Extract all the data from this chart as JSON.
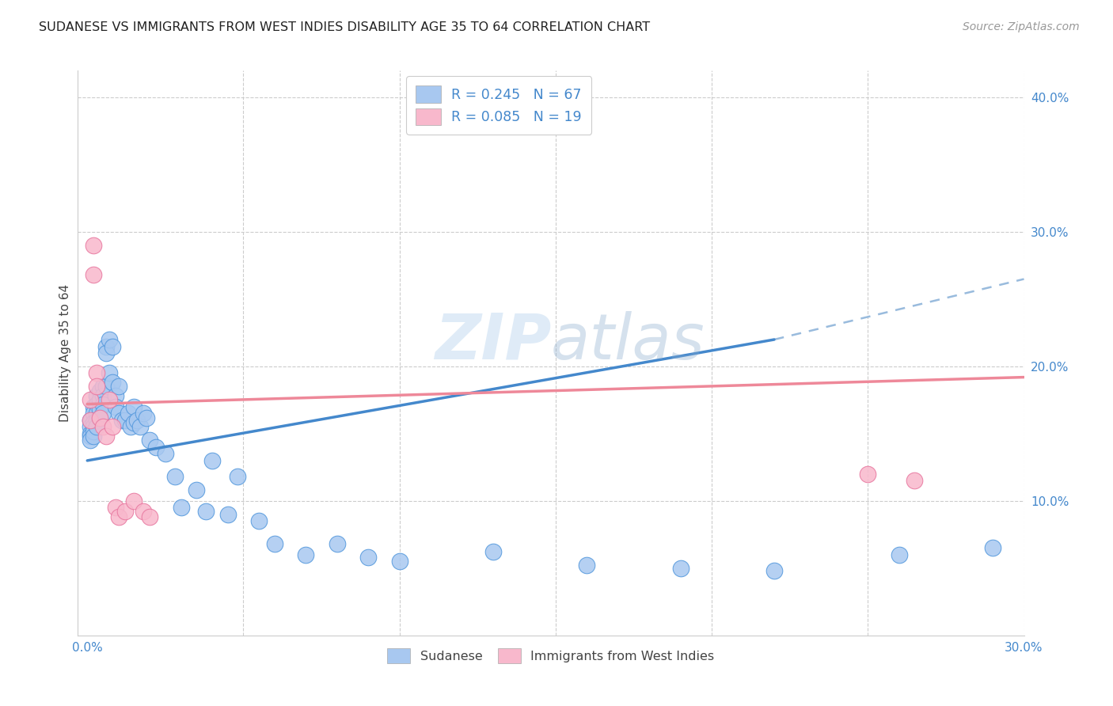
{
  "title": "SUDANESE VS IMMIGRANTS FROM WEST INDIES DISABILITY AGE 35 TO 64 CORRELATION CHART",
  "source": "Source: ZipAtlas.com",
  "ylabel": "Disability Age 35 to 64",
  "xlim": [
    0.0,
    0.3
  ],
  "ylim": [
    0.0,
    0.42
  ],
  "series1_color": "#a8c8f0",
  "series1_edge": "#5599dd",
  "series2_color": "#f8b8cc",
  "series2_edge": "#e878a0",
  "trend1_color": "#4488cc",
  "trend2_color": "#ee8899",
  "trend1_dash_color": "#99bbdd",
  "legend1_label": "R = 0.245   N = 67",
  "legend2_label": "R = 0.085   N = 19",
  "legend1_color": "#a8c8f0",
  "legend2_color": "#f8b8cc",
  "watermark": "ZIPatlas",
  "sudanese_x": [
    0.001,
    0.001,
    0.001,
    0.001,
    0.001,
    0.002,
    0.002,
    0.002,
    0.002,
    0.002,
    0.002,
    0.003,
    0.003,
    0.003,
    0.003,
    0.003,
    0.004,
    0.004,
    0.004,
    0.004,
    0.005,
    0.005,
    0.005,
    0.005,
    0.006,
    0.006,
    0.006,
    0.007,
    0.007,
    0.008,
    0.008,
    0.009,
    0.009,
    0.01,
    0.01,
    0.011,
    0.012,
    0.013,
    0.014,
    0.015,
    0.015,
    0.016,
    0.017,
    0.018,
    0.019,
    0.02,
    0.022,
    0.025,
    0.028,
    0.03,
    0.035,
    0.038,
    0.04,
    0.045,
    0.048,
    0.055,
    0.06,
    0.07,
    0.08,
    0.09,
    0.1,
    0.13,
    0.16,
    0.19,
    0.22,
    0.26,
    0.29
  ],
  "sudanese_y": [
    0.16,
    0.155,
    0.15,
    0.148,
    0.145,
    0.17,
    0.165,
    0.158,
    0.155,
    0.152,
    0.148,
    0.178,
    0.172,
    0.165,
    0.16,
    0.155,
    0.182,
    0.175,
    0.168,
    0.162,
    0.185,
    0.178,
    0.172,
    0.165,
    0.215,
    0.21,
    0.185,
    0.22,
    0.195,
    0.215,
    0.188,
    0.178,
    0.17,
    0.185,
    0.165,
    0.16,
    0.16,
    0.165,
    0.155,
    0.17,
    0.158,
    0.16,
    0.155,
    0.165,
    0.162,
    0.145,
    0.14,
    0.135,
    0.118,
    0.095,
    0.108,
    0.092,
    0.13,
    0.09,
    0.118,
    0.085,
    0.068,
    0.06,
    0.068,
    0.058,
    0.055,
    0.062,
    0.052,
    0.05,
    0.048,
    0.06,
    0.065
  ],
  "westindies_x": [
    0.001,
    0.001,
    0.002,
    0.002,
    0.003,
    0.003,
    0.004,
    0.005,
    0.006,
    0.007,
    0.008,
    0.009,
    0.01,
    0.012,
    0.015,
    0.018,
    0.02,
    0.25,
    0.265
  ],
  "westindies_y": [
    0.175,
    0.16,
    0.29,
    0.268,
    0.195,
    0.185,
    0.162,
    0.155,
    0.148,
    0.175,
    0.155,
    0.095,
    0.088,
    0.092,
    0.1,
    0.092,
    0.088,
    0.12,
    0.115
  ]
}
